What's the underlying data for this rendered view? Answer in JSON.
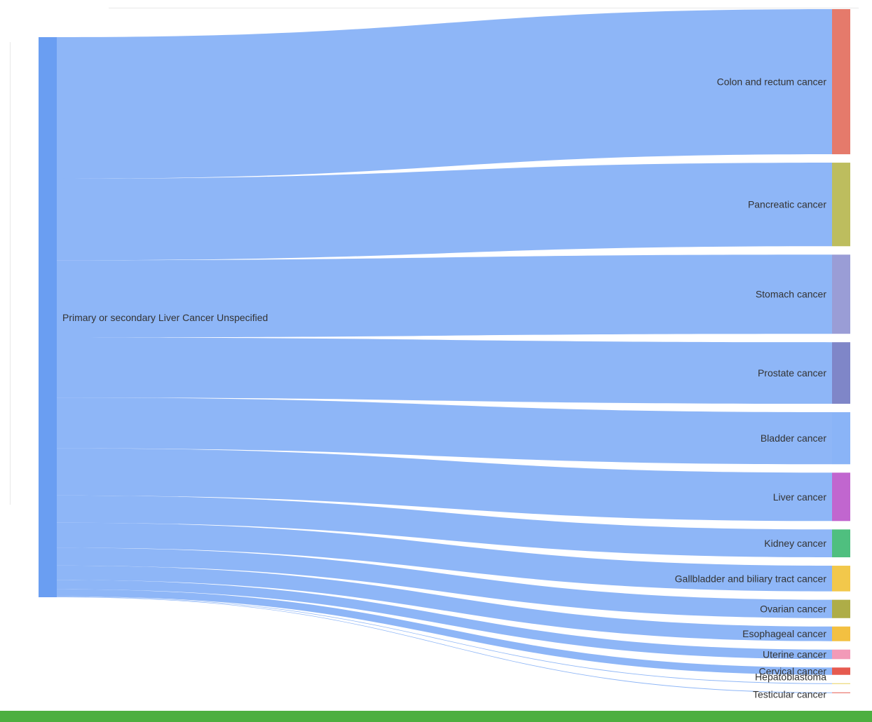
{
  "chart_data": {
    "type": "sankey",
    "source": {
      "name": "Primary or secondary Liver Cancer Unspecified",
      "color": "#6a9ef2"
    },
    "link_color": "#8ab4f7",
    "targets": [
      {
        "name": "Colon and rectum cancer",
        "value": 198,
        "color": "#e57a6b"
      },
      {
        "name": "Pancreatic cancer",
        "value": 114,
        "color": "#bdbd5e"
      },
      {
        "name": "Stomach cancer",
        "value": 108,
        "color": "#9a9dd6"
      },
      {
        "name": "Prostate cancer",
        "value": 84,
        "color": "#7f86c8"
      },
      {
        "name": "Bladder cancer",
        "value": 71,
        "color": "#8ab4f7"
      },
      {
        "name": "Liver cancer",
        "value": 66,
        "color": "#c166cf"
      },
      {
        "name": "Kidney cancer",
        "value": 38,
        "color": "#4fbf7f"
      },
      {
        "name": "Gallbladder and biliary tract cancer",
        "value": 35,
        "color": "#f2c84b"
      },
      {
        "name": "Ovarian cancer",
        "value": 25,
        "color": "#aead47"
      },
      {
        "name": "Esophageal cancer",
        "value": 20,
        "color": "#f3c041"
      },
      {
        "name": "Uterine cancer",
        "value": 13,
        "color": "#f29ab8"
      },
      {
        "name": "Cervical cancer",
        "value": 10,
        "color": "#e65a4f"
      },
      {
        "name": "Hepatoblastoma",
        "value": 0.6,
        "color": "#e8d15a"
      },
      {
        "name": "Testicular cancer",
        "value": 0.6,
        "color": "#e65a4f"
      }
    ]
  },
  "footer_color": "#4caf3f"
}
